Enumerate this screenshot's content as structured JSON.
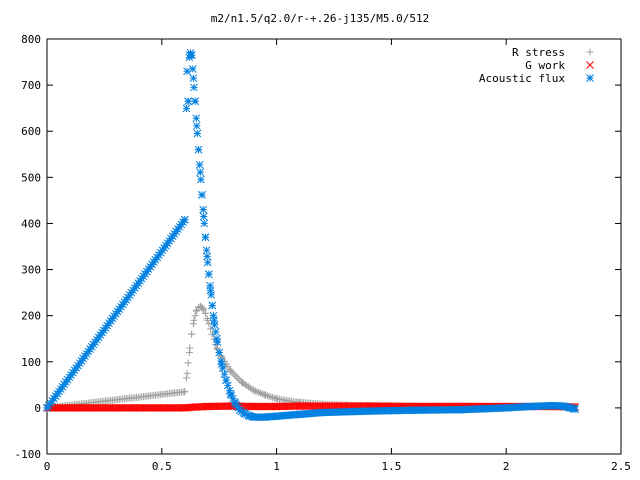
{
  "chart_data": {
    "type": "scatter",
    "title": "m2/n1.5/q2.0/r-+.26-j135/M5.0/512",
    "xlabel": "",
    "ylabel": "",
    "xlim": [
      0,
      2.5
    ],
    "ylim": [
      -100,
      800
    ],
    "x_ticks": [
      "0",
      "0.5",
      "1",
      "1.5",
      "2",
      "2.5"
    ],
    "y_ticks": [
      "-100",
      "0",
      "100",
      "200",
      "300",
      "400",
      "500",
      "600",
      "700",
      "800"
    ],
    "x_tick_values": [
      0,
      0.5,
      1,
      1.5,
      2,
      2.5
    ],
    "y_tick_values": [
      -100,
      0,
      100,
      200,
      300,
      400,
      500,
      600,
      700,
      800
    ],
    "grid": false,
    "legend_position": "top-right",
    "series": [
      {
        "name": "R stress",
        "marker": "plus",
        "color": "#a0a0a0",
        "x": [
          0.0,
          0.6,
          0.61,
          0.62,
          0.63,
          0.64,
          0.65,
          0.66,
          0.67,
          0.68,
          0.69,
          0.7,
          0.72,
          0.74,
          0.76,
          0.78,
          0.8,
          0.85,
          0.9,
          0.95,
          1.0,
          1.05,
          1.1,
          1.2,
          1.3,
          1.4,
          1.6,
          1.8,
          2.0,
          2.2,
          2.3
        ],
        "y": [
          0,
          35,
          75,
          120,
          160,
          190,
          210,
          218,
          220,
          215,
          205,
          190,
          160,
          130,
          110,
          95,
          80,
          55,
          38,
          28,
          20,
          15,
          12,
          8,
          6,
          5,
          4,
          4,
          3,
          3,
          2
        ]
      },
      {
        "name": "G work",
        "marker": "x",
        "color": "#ff0000",
        "x": [
          0.0,
          0.6,
          0.65,
          0.7,
          0.8,
          0.9,
          1.0,
          1.1,
          1.2,
          1.4,
          1.6,
          1.8,
          2.0,
          2.2,
          2.3
        ],
        "y": [
          0,
          0,
          2,
          3,
          4,
          3,
          3,
          4,
          4,
          4,
          3,
          3,
          3,
          3,
          2
        ]
      },
      {
        "name": "Acoustic flux",
        "marker": "star",
        "color": "#0080e0",
        "x": [
          0.0,
          0.6,
          0.61,
          0.615,
          0.62,
          0.625,
          0.63,
          0.635,
          0.64,
          0.645,
          0.65,
          0.655,
          0.66,
          0.665,
          0.67,
          0.675,
          0.68,
          0.685,
          0.69,
          0.695,
          0.7,
          0.705,
          0.71,
          0.715,
          0.72,
          0.725,
          0.73,
          0.74,
          0.75,
          0.76,
          0.78,
          0.8,
          0.82,
          0.84,
          0.86,
          0.88,
          0.9,
          0.95,
          1.0,
          1.1,
          1.2,
          1.4,
          1.6,
          1.8,
          1.9,
          2.0,
          2.1,
          2.2,
          2.25,
          2.28,
          2.3
        ],
        "y": [
          0,
          408,
          730,
          665,
          760,
          770,
          765,
          735,
          695,
          665,
          628,
          595,
          560,
          527,
          495,
          462,
          430,
          400,
          370,
          342,
          315,
          290,
          265,
          245,
          222,
          200,
          180,
          150,
          120,
          95,
          60,
          30,
          10,
          -5,
          -12,
          -17,
          -20,
          -20,
          -18,
          -14,
          -10,
          -7,
          -5,
          -4,
          -2,
          0,
          3,
          5,
          4,
          0,
          -3
        ]
      }
    ]
  }
}
